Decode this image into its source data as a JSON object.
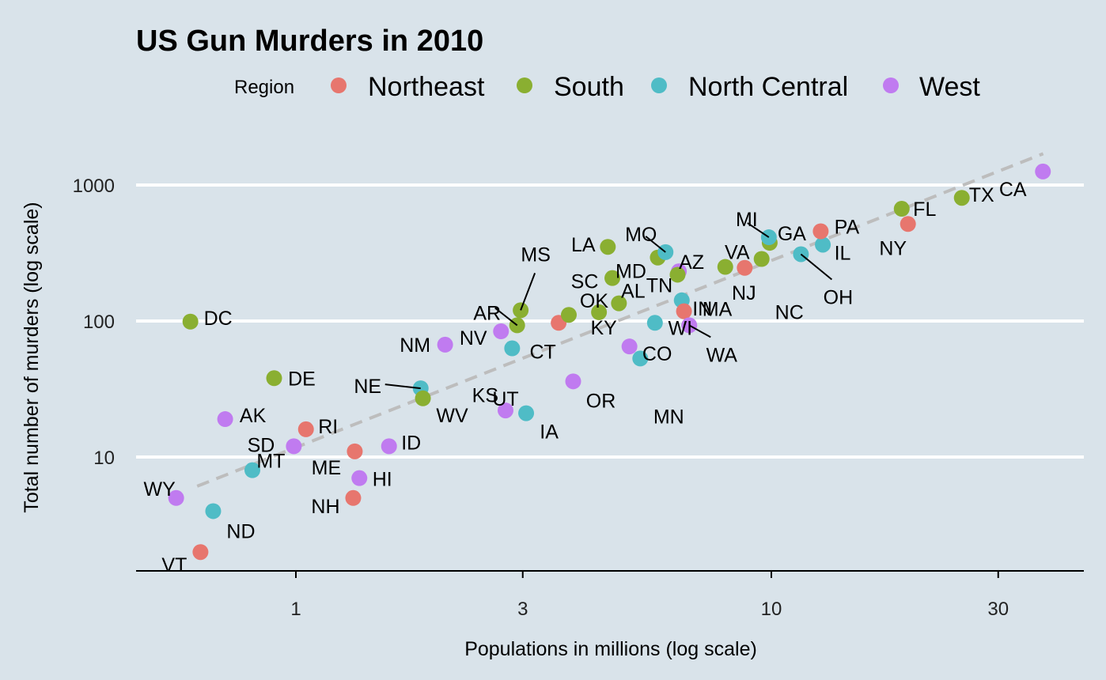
{
  "chart_data": {
    "type": "scatter",
    "title": "US Gun Murders in 2010",
    "xlabel": "Populations in millions (log scale)",
    "ylabel": "Total number of murders (log scale)",
    "x_scale": "log10",
    "y_scale": "log10",
    "xlim": [
      0.42,
      43
    ],
    "ylim": [
      1.55,
      2000
    ],
    "x_ticks": [
      1,
      3,
      10,
      30
    ],
    "x_tick_labels": [
      "1",
      "3",
      "10",
      "30"
    ],
    "y_ticks": [
      10,
      100,
      1000
    ],
    "y_tick_labels": [
      "10",
      "100",
      "1000"
    ],
    "grid": "horizontal-major",
    "legend_title": "Region",
    "legend_position": "top",
    "regions": [
      {
        "name": "Northeast",
        "color": "#E7766E"
      },
      {
        "name": "South",
        "color": "#8AAF31"
      },
      {
        "name": "North Central",
        "color": "#4FBCC6"
      },
      {
        "name": "West",
        "color": "#C07BF0"
      }
    ],
    "trend_line": {
      "style": "dashed",
      "color": "#bdbdbd",
      "x": [
        0.62,
        37.3
      ],
      "y": [
        6.1,
        1700
      ]
    },
    "points": [
      {
        "abb": "AL",
        "region": "South",
        "pop": 4.78,
        "murders": 135
      },
      {
        "abb": "AK",
        "region": "West",
        "pop": 0.71,
        "murders": 19
      },
      {
        "abb": "AZ",
        "region": "West",
        "pop": 6.39,
        "murders": 232
      },
      {
        "abb": "AR",
        "region": "South",
        "pop": 2.92,
        "murders": 93
      },
      {
        "abb": "CA",
        "region": "West",
        "pop": 37.25,
        "murders": 1257
      },
      {
        "abb": "CO",
        "region": "West",
        "pop": 5.03,
        "murders": 65
      },
      {
        "abb": "CT",
        "region": "Northeast",
        "pop": 3.57,
        "murders": 97
      },
      {
        "abb": "DE",
        "region": "South",
        "pop": 0.9,
        "murders": 38
      },
      {
        "abb": "DC",
        "region": "South",
        "pop": 0.6,
        "murders": 99
      },
      {
        "abb": "FL",
        "region": "South",
        "pop": 18.8,
        "murders": 669
      },
      {
        "abb": "GA",
        "region": "South",
        "pop": 9.92,
        "murders": 376
      },
      {
        "abb": "HI",
        "region": "West",
        "pop": 1.36,
        "murders": 7
      },
      {
        "abb": "ID",
        "region": "West",
        "pop": 1.57,
        "murders": 12
      },
      {
        "abb": "IL",
        "region": "North Central",
        "pop": 12.83,
        "murders": 364
      },
      {
        "abb": "IN",
        "region": "North Central",
        "pop": 6.48,
        "murders": 142
      },
      {
        "abb": "IA",
        "region": "North Central",
        "pop": 3.05,
        "murders": 21
      },
      {
        "abb": "KS",
        "region": "North Central",
        "pop": 2.85,
        "murders": 63
      },
      {
        "abb": "KY",
        "region": "South",
        "pop": 4.34,
        "murders": 116
      },
      {
        "abb": "LA",
        "region": "South",
        "pop": 4.53,
        "murders": 351
      },
      {
        "abb": "ME",
        "region": "Northeast",
        "pop": 1.33,
        "murders": 11
      },
      {
        "abb": "MD",
        "region": "South",
        "pop": 5.77,
        "murders": 293
      },
      {
        "abb": "MA",
        "region": "Northeast",
        "pop": 6.55,
        "murders": 118
      },
      {
        "abb": "MI",
        "region": "North Central",
        "pop": 9.88,
        "murders": 413
      },
      {
        "abb": "MN",
        "region": "North Central",
        "pop": 5.3,
        "murders": 53
      },
      {
        "abb": "MS",
        "region": "South",
        "pop": 2.97,
        "murders": 120
      },
      {
        "abb": "MO",
        "region": "North Central",
        "pop": 5.99,
        "murders": 321
      },
      {
        "abb": "MT",
        "region": "West",
        "pop": 0.99,
        "murders": 12
      },
      {
        "abb": "NE",
        "region": "North Central",
        "pop": 1.83,
        "murders": 32
      },
      {
        "abb": "NV",
        "region": "West",
        "pop": 2.7,
        "murders": 84
      },
      {
        "abb": "NH",
        "region": "Northeast",
        "pop": 1.32,
        "murders": 5
      },
      {
        "abb": "NJ",
        "region": "Northeast",
        "pop": 8.79,
        "murders": 246
      },
      {
        "abb": "NM",
        "region": "West",
        "pop": 2.06,
        "murders": 67
      },
      {
        "abb": "NY",
        "region": "Northeast",
        "pop": 19.38,
        "murders": 517
      },
      {
        "abb": "NC",
        "region": "South",
        "pop": 9.54,
        "murders": 286
      },
      {
        "abb": "ND",
        "region": "North Central",
        "pop": 0.67,
        "murders": 4
      },
      {
        "abb": "OH",
        "region": "North Central",
        "pop": 11.54,
        "murders": 310
      },
      {
        "abb": "OK",
        "region": "South",
        "pop": 3.75,
        "murders": 111
      },
      {
        "abb": "OR",
        "region": "West",
        "pop": 3.83,
        "murders": 36
      },
      {
        "abb": "PA",
        "region": "Northeast",
        "pop": 12.7,
        "murders": 457
      },
      {
        "abb": "RI",
        "region": "Northeast",
        "pop": 1.05,
        "murders": 16
      },
      {
        "abb": "SC",
        "region": "South",
        "pop": 4.63,
        "murders": 207
      },
      {
        "abb": "SD",
        "region": "North Central",
        "pop": 0.81,
        "murders": 8
      },
      {
        "abb": "TN",
        "region": "South",
        "pop": 6.35,
        "murders": 219
      },
      {
        "abb": "TX",
        "region": "South",
        "pop": 25.15,
        "murders": 805
      },
      {
        "abb": "UT",
        "region": "West",
        "pop": 2.76,
        "murders": 22
      },
      {
        "abb": "VT",
        "region": "Northeast",
        "pop": 0.63,
        "murders": 2
      },
      {
        "abb": "VA",
        "region": "South",
        "pop": 8.0,
        "murders": 250
      },
      {
        "abb": "WA",
        "region": "West",
        "pop": 6.72,
        "murders": 93
      },
      {
        "abb": "WV",
        "region": "South",
        "pop": 1.85,
        "murders": 27
      },
      {
        "abb": "WI",
        "region": "North Central",
        "pop": 5.69,
        "murders": 97
      },
      {
        "abb": "WY",
        "region": "West",
        "pop": 0.56,
        "murders": 5
      }
    ]
  }
}
